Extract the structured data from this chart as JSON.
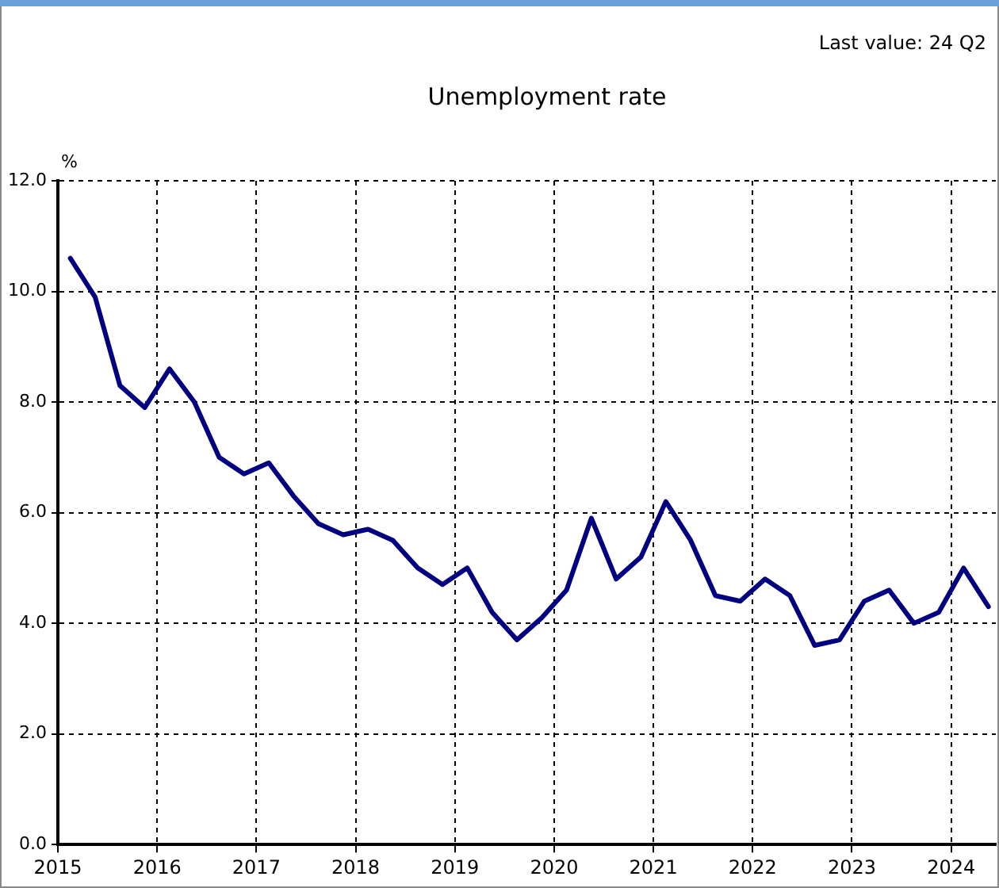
{
  "chart_data": {
    "type": "line",
    "title": "Unemployment rate",
    "ylabel": "%",
    "annotations": [
      "Last value: 24 Q2"
    ],
    "x": [
      2015.125,
      2015.375,
      2015.625,
      2015.875,
      2016.125,
      2016.375,
      2016.625,
      2016.875,
      2017.125,
      2017.375,
      2017.625,
      2017.875,
      2018.125,
      2018.375,
      2018.625,
      2018.875,
      2019.125,
      2019.375,
      2019.625,
      2019.875,
      2020.125,
      2020.375,
      2020.625,
      2020.875,
      2021.125,
      2021.375,
      2021.625,
      2021.875,
      2022.125,
      2022.375,
      2022.625,
      2022.875,
      2023.125,
      2023.375,
      2023.625,
      2023.875,
      2024.125,
      2024.375
    ],
    "series": [
      {
        "color": "#000080",
        "values": [
          10.6,
          9.9,
          8.3,
          7.9,
          8.6,
          8.0,
          7.0,
          6.7,
          6.9,
          6.3,
          5.8,
          5.6,
          5.7,
          5.5,
          5.0,
          4.7,
          5.0,
          4.2,
          3.7,
          4.1,
          4.6,
          5.9,
          4.8,
          5.2,
          6.2,
          5.5,
          4.5,
          4.4,
          4.8,
          4.5,
          3.6,
          3.7,
          4.4,
          4.6,
          4.0,
          4.2,
          5.0,
          4.3
        ]
      }
    ],
    "xlim": [
      2015,
      2024.45
    ],
    "xticks": [
      2015,
      2016,
      2017,
      2018,
      2019,
      2020,
      2021,
      2022,
      2023,
      2024
    ],
    "ylim": [
      0,
      12
    ],
    "yticks": [
      {
        "value": 0,
        "label": "0.0"
      },
      {
        "value": 2,
        "label": "2.0"
      },
      {
        "value": 4,
        "label": "4.0"
      },
      {
        "value": 6,
        "label": "6.0"
      },
      {
        "value": 8,
        "label": "8.0"
      },
      {
        "value": 10,
        "label": "10.0"
      },
      {
        "value": 12,
        "label": "12.0"
      }
    ],
    "grid": true,
    "legend": false,
    "marker": "none",
    "line_style": "solid"
  }
}
